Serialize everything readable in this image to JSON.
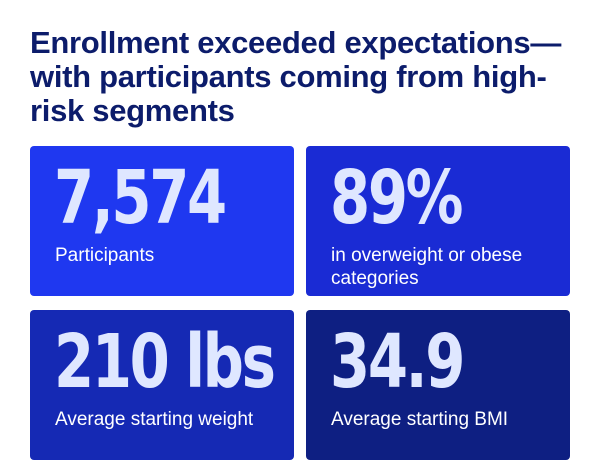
{
  "headline": "Enrollment exceeded expectations—with participants coming from high-risk segments",
  "cards": [
    {
      "value": "7,574",
      "label": "Participants",
      "color": "#1f38f0"
    },
    {
      "value": "89%",
      "label": "in overweight or obese categories",
      "color": "#1a2bd4"
    },
    {
      "value": "210 lbs",
      "label": "Average starting weight",
      "color": "#1529b4"
    },
    {
      "value": "34.9",
      "label": "Average starting BMI",
      "color": "#0e1f82"
    }
  ]
}
